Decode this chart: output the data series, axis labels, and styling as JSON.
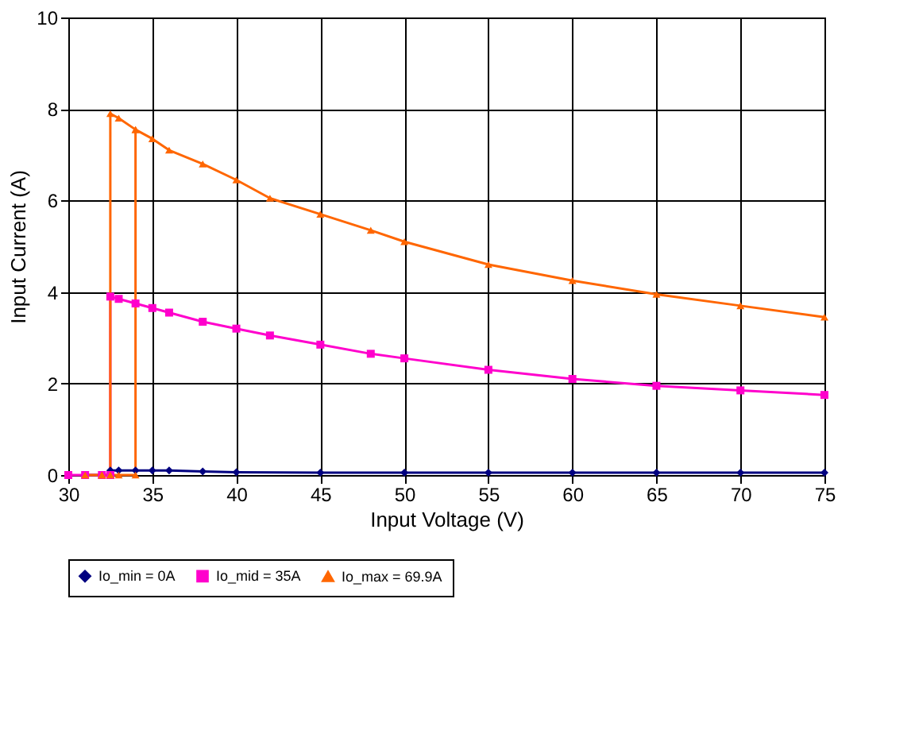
{
  "chart_data": {
    "type": "line",
    "xlabel": "Input Voltage (V)",
    "ylabel": "Input Current (A)",
    "xlim": [
      30,
      75
    ],
    "xticks": [
      30,
      35,
      40,
      45,
      50,
      55,
      60,
      65,
      70,
      75
    ],
    "ylim": [
      0,
      10
    ],
    "yticks": [
      0,
      2,
      4,
      6,
      8,
      10
    ],
    "grid": true,
    "legend": "bottom",
    "series": [
      {
        "name": "Io_min = 0A",
        "color": "#000080",
        "marker": "diamond",
        "x": [
          31,
          32,
          32.5,
          32.5,
          33,
          34,
          35,
          36,
          38,
          40,
          45,
          50,
          55,
          60,
          65,
          70,
          75
        ],
        "values": [
          0,
          0,
          0,
          0.1,
          0.1,
          0.1,
          0.1,
          0.1,
          0.08,
          0.06,
          0.05,
          0.05,
          0.05,
          0.05,
          0.05,
          0.05,
          0.05
        ]
      },
      {
        "name": "Io_mid = 35A",
        "color": "#ff00cc",
        "marker": "square",
        "x": [
          30,
          31,
          32,
          32.5,
          32.5,
          33,
          34,
          35,
          36,
          38,
          40,
          42,
          45,
          48,
          50,
          55,
          60,
          65,
          70,
          75
        ],
        "values": [
          0,
          0,
          0,
          0,
          3.9,
          3.85,
          3.75,
          3.65,
          3.55,
          3.35,
          3.2,
          3.05,
          2.85,
          2.65,
          2.55,
          2.3,
          2.1,
          1.95,
          1.85,
          1.75
        ]
      },
      {
        "name": "Io_max = 69.9A",
        "color": "#ff6600",
        "marker": "triangle",
        "x": [
          75,
          70,
          65,
          60,
          55,
          50,
          48,
          45,
          42,
          40,
          38,
          36,
          35,
          34,
          33,
          32.5,
          32.5,
          32,
          31,
          32,
          33,
          34,
          34
        ],
        "values": [
          3.45,
          3.7,
          3.95,
          4.25,
          4.6,
          5.1,
          5.35,
          5.7,
          6.05,
          6.45,
          6.8,
          7.1,
          7.35,
          7.55,
          7.8,
          7.9,
          0,
          0,
          0,
          0,
          0,
          0,
          7.55
        ]
      }
    ]
  }
}
